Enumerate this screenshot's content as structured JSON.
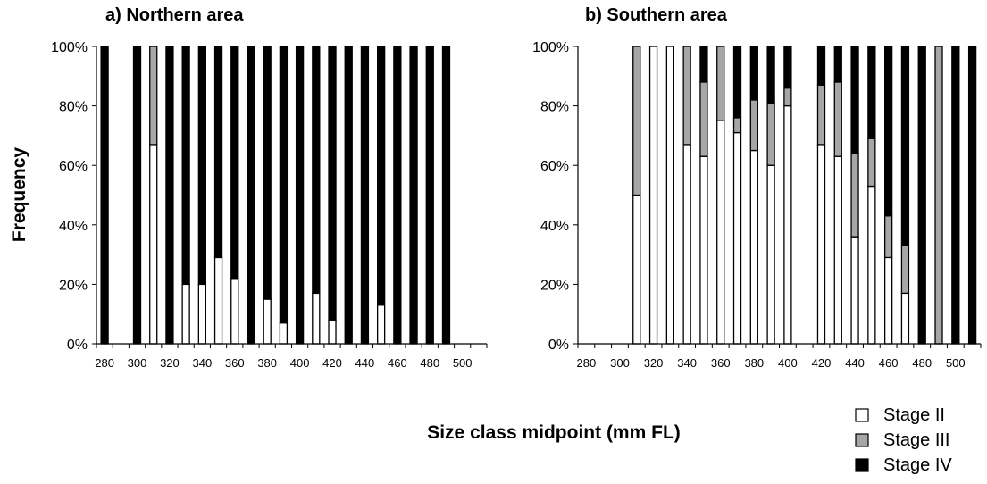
{
  "chart_data": [
    {
      "type": "bar",
      "stacked": true,
      "title": "a) Northern area",
      "ylabel": "Frequency",
      "xlabel": "Size class midpoint (mm FL)",
      "ylim": [
        0,
        100
      ],
      "y_tick_labels": [
        "0%",
        "20%",
        "40%",
        "60%",
        "80%",
        "100%"
      ],
      "categories": [
        280,
        290,
        300,
        310,
        320,
        330,
        340,
        350,
        360,
        370,
        380,
        390,
        400,
        410,
        420,
        430,
        440,
        450,
        460,
        470,
        480,
        490,
        500,
        510
      ],
      "x_tick_labels": [
        "280",
        "300",
        "320",
        "340",
        "360",
        "380",
        "400",
        "420",
        "440",
        "460",
        "480",
        "500"
      ],
      "series": [
        {
          "name": "Stage II",
          "values": [
            0,
            null,
            0,
            67,
            0,
            20,
            20,
            29,
            22,
            0,
            15,
            7,
            0,
            17,
            8,
            0,
            0,
            13,
            0,
            0,
            0,
            0,
            null,
            null
          ]
        },
        {
          "name": "Stage III",
          "values": [
            0,
            null,
            0,
            33,
            0,
            0,
            0,
            0,
            0,
            0,
            0,
            0,
            0,
            0,
            0,
            0,
            0,
            0,
            0,
            0,
            0,
            0,
            null,
            null
          ]
        },
        {
          "name": "Stage IV",
          "values": [
            100,
            null,
            100,
            0,
            100,
            80,
            80,
            71,
            78,
            100,
            85,
            93,
            100,
            83,
            92,
            100,
            100,
            87,
            100,
            100,
            100,
            100,
            null,
            null
          ]
        }
      ]
    },
    {
      "type": "bar",
      "stacked": true,
      "title": "b) Southern area",
      "xlabel": "Size class midpoint (mm FL)",
      "ylim": [
        0,
        100
      ],
      "y_tick_labels": [
        "0%",
        "20%",
        "40%",
        "60%",
        "80%",
        "100%"
      ],
      "categories": [
        280,
        290,
        300,
        310,
        320,
        330,
        340,
        350,
        360,
        370,
        380,
        390,
        400,
        410,
        420,
        430,
        440,
        450,
        460,
        470,
        480,
        490,
        500,
        510
      ],
      "x_tick_labels": [
        "280",
        "300",
        "320",
        "340",
        "360",
        "380",
        "400",
        "420",
        "440",
        "460",
        "480",
        "500"
      ],
      "series": [
        {
          "name": "Stage II",
          "values": [
            null,
            null,
            null,
            50,
            100,
            100,
            67,
            63,
            75,
            71,
            65,
            60,
            80,
            null,
            67,
            63,
            36,
            53,
            29,
            17,
            0,
            0,
            0,
            0
          ]
        },
        {
          "name": "Stage III",
          "values": [
            null,
            null,
            null,
            50,
            0,
            0,
            33,
            25,
            25,
            5,
            17,
            21,
            6,
            null,
            20,
            25,
            28,
            16,
            14,
            16,
            0,
            100,
            0,
            0
          ]
        },
        {
          "name": "Stage IV",
          "values": [
            null,
            null,
            null,
            0,
            0,
            0,
            0,
            12,
            0,
            24,
            18,
            19,
            14,
            null,
            13,
            12,
            36,
            31,
            57,
            67,
            100,
            0,
            100,
            100
          ]
        }
      ]
    }
  ],
  "legend": {
    "placement": "bottom-right",
    "items": [
      {
        "label": "Stage II",
        "color": "#ffffff"
      },
      {
        "label": "Stage III",
        "color": "#a6a6a6"
      },
      {
        "label": "Stage IV",
        "color": "#000000"
      }
    ]
  },
  "colors": {
    "stage_ii": "#ffffff",
    "stage_iii": "#a6a6a6",
    "stage_iv": "#000000",
    "axis": "#000000"
  }
}
